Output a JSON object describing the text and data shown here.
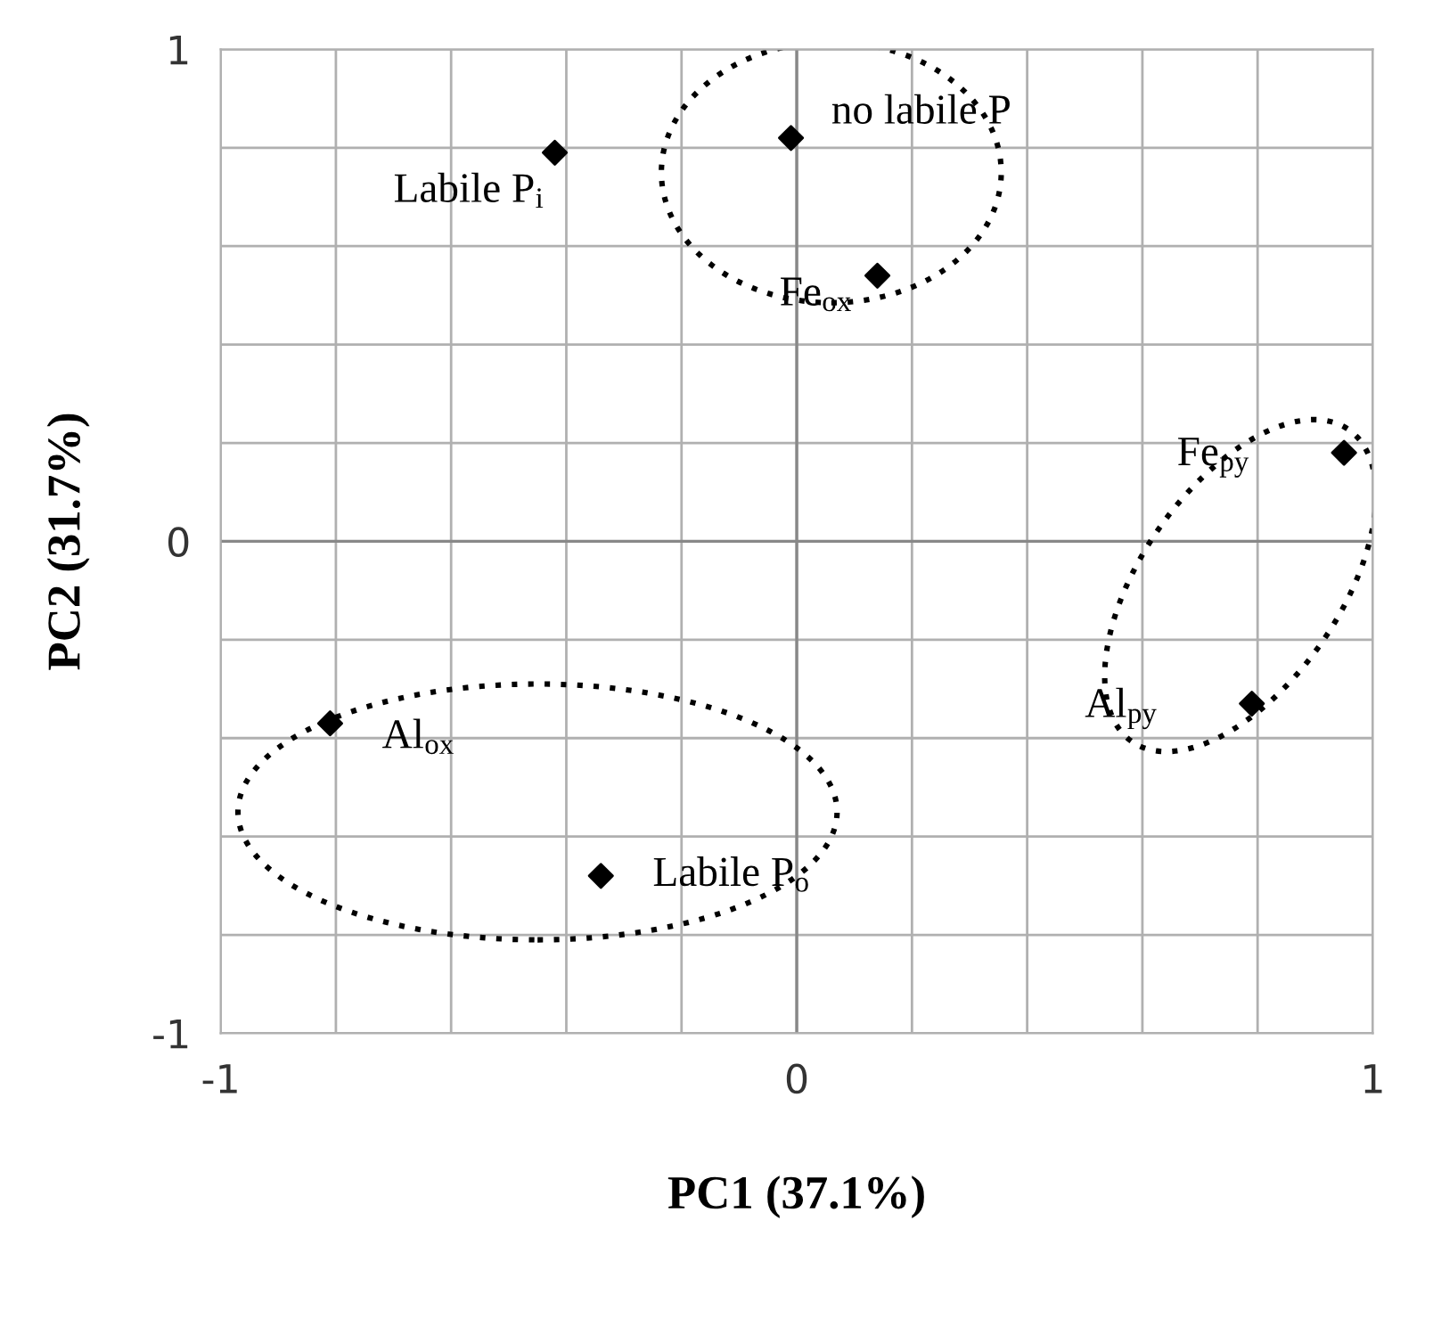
{
  "chart_data": {
    "type": "scatter",
    "xlabel": "PC1 (37.1%)",
    "ylabel": "PC2 (31.7%)",
    "x": [
      -0.42,
      -0.01,
      0.14,
      0.95,
      0.79,
      -0.81,
      -0.34
    ],
    "values": [
      0.79,
      0.82,
      0.54,
      0.18,
      -0.33,
      -0.37,
      -0.68
    ],
    "color": "#000000",
    "marker": "diamond",
    "grid": true,
    "xlim": [
      -1,
      1
    ],
    "ylim": [
      -1,
      1
    ],
    "xticks": [
      -1,
      {
        "value": -0.8,
        "label": null
      },
      {
        "value": -0.6,
        "label": null
      },
      {
        "value": -0.4,
        "label": null
      },
      {
        "value": -0.2,
        "label": null
      },
      0,
      {
        "value": 0.2,
        "label": null
      },
      {
        "value": 0.4,
        "label": null
      },
      {
        "value": 0.6,
        "label": null
      },
      {
        "value": 0.8,
        "label": null
      },
      1
    ],
    "yticks": [
      -1,
      {
        "value": -0.8,
        "label": null
      },
      {
        "value": -0.6,
        "label": null
      },
      {
        "value": -0.4,
        "label": null
      },
      {
        "value": -0.2,
        "label": null
      },
      0,
      {
        "value": 0.2,
        "label": null
      },
      {
        "value": 0.4,
        "label": null
      },
      {
        "value": 0.6,
        "label": null
      },
      {
        "value": 0.8,
        "label": null
      },
      1
    ],
    "annotations": [
      {
        "text": "Labile P$_{i}$",
        "x": -0.42,
        "y": 0.79
      },
      {
        "text": "no labile P",
        "x": -0.01,
        "y": 0.82
      },
      {
        "text": "Fe$_{ox}$",
        "x": 0.14,
        "y": 0.54
      },
      {
        "text": "Fe$_{py}$",
        "x": 0.95,
        "y": 0.18
      },
      {
        "text": "Al$_{py}$",
        "x": 0.79,
        "y": -0.33
      },
      {
        "text": "Al$_{ox}$",
        "x": -0.81,
        "y": -0.37
      },
      {
        "text": "Labile P$_{o}$",
        "x": -0.34,
        "y": -0.68
      }
    ]
  }
}
